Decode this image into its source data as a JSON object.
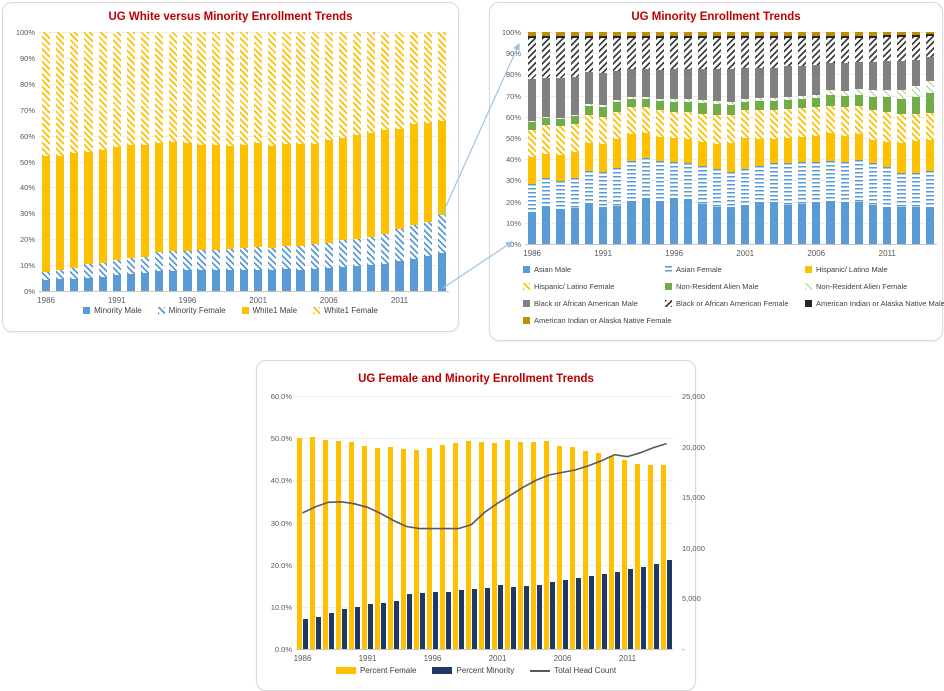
{
  "colors": {
    "title_red": "#C00000",
    "axis_text": "#595959",
    "gridline": "#EDEDED",
    "connector_blue": "#9DC3E6"
  },
  "chart_data": [
    {
      "id": "white_vs_minority",
      "type": "bar",
      "stacked": true,
      "percent_axis": true,
      "title": "UG White versus Minority Enrollment Trends",
      "years": [
        1986,
        1987,
        1988,
        1989,
        1990,
        1991,
        1992,
        1993,
        1994,
        1995,
        1996,
        1997,
        1998,
        1999,
        2000,
        2001,
        2002,
        2003,
        2004,
        2005,
        2006,
        2007,
        2008,
        2009,
        2010,
        2011,
        2012,
        2013,
        2014
      ],
      "x_tick_labels": [
        "1986",
        "1991",
        "1996",
        "2001",
        "2006",
        "2011"
      ],
      "x_tick_indices": [
        0,
        5,
        10,
        15,
        20,
        25
      ],
      "y_ticks": [
        "0%",
        "10%",
        "20%",
        "30%",
        "40%",
        "50%",
        "60%",
        "70%",
        "80%",
        "90%",
        "100%"
      ],
      "series": [
        {
          "name": "Minority Male",
          "color": "#5B9BD5",
          "pattern": "solid",
          "values": [
            4.2,
            4.5,
            4.8,
            5.2,
            5.5,
            6,
            6.5,
            6.8,
            7.6,
            7.6,
            8,
            8.2,
            8.2,
            8.1,
            8.2,
            8.3,
            8.2,
            8.5,
            8.2,
            8.5,
            9,
            9.4,
            9.5,
            10,
            10.6,
            11.6,
            12.2,
            13.5,
            14.6
          ]
        },
        {
          "name": "Minority Female",
          "color": "#5B9BD5",
          "pattern": "diag",
          "values": [
            3.3,
            3.7,
            4.2,
            5.1,
            5.5,
            6,
            6.3,
            6.2,
            7.6,
            7.9,
            7.5,
            7.8,
            7.8,
            8.2,
            8.6,
            8.7,
            8.6,
            8.8,
            9.3,
            9.5,
            9.6,
            10.2,
            10.5,
            11,
            11.6,
            12.2,
            13.4,
            13.3,
            14.8
          ]
        },
        {
          "name": "White1 Male",
          "color": "#FFC000",
          "pattern": "solid",
          "values": [
            44.8,
            44.1,
            44.2,
            43.3,
            43.6,
            43.6,
            43.6,
            43.5,
            41.8,
            41.9,
            41.7,
            40.4,
            40.2,
            39.6,
            39.6,
            40,
            39.2,
            39.3,
            39.3,
            38.9,
            39.9,
            39.3,
            40.1,
            40.2,
            39.8,
            38.9,
            38.7,
            38,
            36.3
          ]
        },
        {
          "name": "White1 Female",
          "color": "#FFC000",
          "pattern": "diag",
          "values": [
            47.7,
            47.7,
            46.8,
            46.4,
            45.4,
            44.4,
            43.6,
            43.5,
            43,
            42.6,
            42.8,
            43.6,
            43.8,
            44.1,
            43.6,
            43,
            44,
            43.4,
            43.2,
            43.1,
            41.5,
            41.1,
            39.9,
            38.8,
            38,
            37.3,
            35.7,
            35.2,
            34.3
          ]
        }
      ]
    },
    {
      "id": "minority_detail",
      "type": "bar",
      "stacked": true,
      "percent_axis": true,
      "title": "UG Minority Enrollment Trends",
      "years": [
        1986,
        1987,
        1988,
        1989,
        1990,
        1991,
        1992,
        1993,
        1994,
        1995,
        1996,
        1997,
        1998,
        1999,
        2000,
        2001,
        2002,
        2003,
        2004,
        2005,
        2006,
        2007,
        2008,
        2009,
        2010,
        2011,
        2012,
        2013,
        2014
      ],
      "x_tick_labels": [
        "1986",
        "1991",
        "1996",
        "2001",
        "2006",
        "2011"
      ],
      "x_tick_indices": [
        0,
        5,
        10,
        15,
        20,
        25
      ],
      "y_ticks": [
        "0%",
        "10%",
        "20%",
        "30%",
        "40%",
        "50%",
        "60%",
        "70%",
        "80%",
        "90%",
        "100%"
      ],
      "series": [
        {
          "name": "Asian Male",
          "color": "#5B9BD5",
          "pattern": "solid",
          "values": [
            15,
            17.5,
            16.5,
            17,
            19,
            17.5,
            18,
            20,
            21,
            20,
            21,
            21,
            19,
            17.5,
            17.5,
            18,
            19.5,
            20,
            18.5,
            19,
            19.5,
            20,
            19.5,
            20,
            18.5,
            17.5,
            17.5,
            17.5,
            17.5
          ]
        },
        {
          "name": "Asian Female",
          "color": "#5B9BD5",
          "pattern": "horiz",
          "values": [
            13.5,
            13.5,
            13,
            14,
            15.5,
            16.5,
            18,
            19,
            19.5,
            19,
            17.5,
            17,
            18,
            18,
            16.5,
            17.5,
            17.5,
            18,
            19.5,
            19.5,
            19,
            19,
            19,
            19.5,
            19.5,
            18.5,
            16,
            16,
            17
          ]
        },
        {
          "name": "Hispanic/ Latino Male",
          "color": "#FFC000",
          "pattern": "solid",
          "values": [
            12.5,
            11.5,
            12.5,
            12.5,
            13,
            13,
            13.5,
            13,
            12,
            11.5,
            11.5,
            11.5,
            11,
            11.5,
            13.5,
            14.5,
            12.5,
            11.5,
            12,
            12,
            12.5,
            13.5,
            12.5,
            12.5,
            11,
            12,
            14,
            15,
            14.5
          ]
        },
        {
          "name": "Hispanic/ Latino Female",
          "color": "#FFC000",
          "pattern": "diag",
          "values": [
            13,
            13.5,
            13.5,
            13,
            13.5,
            13,
            13,
            12.5,
            12,
            12.5,
            12.5,
            13,
            13.5,
            14,
            13.5,
            13,
            13.5,
            13.5,
            13.5,
            13.5,
            13.5,
            12.5,
            13.5,
            13,
            14,
            14,
            13.5,
            13,
            13
          ]
        },
        {
          "name": "Non-Resident Alien Male",
          "color": "#70AD47",
          "pattern": "solid",
          "values": [
            3.5,
            3.5,
            3.5,
            4,
            4,
            4.5,
            4.5,
            4,
            4,
            4.5,
            4.5,
            4.5,
            5,
            5,
            4.5,
            4,
            4.5,
            4.5,
            4.5,
            4.5,
            4.5,
            5.5,
            5.5,
            5.5,
            6.5,
            7,
            7,
            8,
            9
          ]
        },
        {
          "name": "Non-Resident Alien Female",
          "color": "#A9D18E",
          "pattern": "diag-light",
          "values": [
            0.5,
            0.5,
            0.5,
            0.5,
            1,
            1,
            1,
            1,
            1,
            1,
            1.5,
            1.5,
            1.5,
            1.5,
            1.5,
            1.5,
            1.5,
            1.5,
            1.5,
            1.5,
            1.5,
            2,
            2,
            2.5,
            3,
            3.5,
            4.5,
            5,
            6
          ]
        },
        {
          "name": "Black or African American Male",
          "color": "#808080",
          "pattern": "solid",
          "values": [
            20,
            18.5,
            19,
            18,
            15,
            15,
            13.5,
            13,
            13,
            13.5,
            14,
            14,
            14.5,
            15,
            15.5,
            14.5,
            14,
            14,
            14.5,
            14,
            14,
            13,
            13.5,
            13,
            13.5,
            13.5,
            13.5,
            12.5,
            11
          ]
        },
        {
          "name": "Black or African American Female",
          "color": "#404040",
          "pattern": "diag2",
          "values": [
            19,
            18.5,
            18.5,
            18,
            16,
            16.5,
            15.5,
            14.5,
            14.5,
            15,
            14.5,
            14.5,
            14.5,
            14.5,
            14.5,
            14,
            14,
            14,
            13,
            13,
            12.5,
            11.5,
            11.5,
            11,
            11,
            11,
            11,
            10.5,
            10
          ]
        },
        {
          "name": "American Indian or Alaska Native Male",
          "color": "#262626",
          "pattern": "solid",
          "values": [
            1,
            1,
            1,
            1,
            1,
            1,
            1,
            1,
            1,
            1,
            1,
            1,
            1,
            1,
            1,
            1,
            1,
            1,
            1,
            1,
            1,
            1,
            1,
            1,
            1,
            1,
            1,
            1,
            1
          ]
        },
        {
          "name": "American Indian or Alaska Native Female",
          "color": "#BF8F00",
          "pattern": "solid",
          "values": [
            2,
            2,
            2,
            2,
            2,
            2,
            2,
            2,
            2,
            2,
            2,
            2,
            2,
            2,
            2,
            2,
            2,
            2,
            2,
            2,
            2,
            2,
            2,
            2,
            2,
            1.5,
            1.5,
            1.5,
            1
          ]
        }
      ]
    },
    {
      "id": "female_and_minority",
      "type": "combo",
      "title": "UG Female and Minority Enrollment Trends",
      "years": [
        1986,
        1987,
        1988,
        1989,
        1990,
        1991,
        1992,
        1993,
        1994,
        1995,
        1996,
        1997,
        1998,
        1999,
        2000,
        2001,
        2002,
        2003,
        2004,
        2005,
        2006,
        2007,
        2008,
        2009,
        2010,
        2011,
        2012,
        2013,
        2014
      ],
      "x_tick_labels": [
        "1986",
        "1991",
        "1996",
        "2001",
        "2006",
        "2011"
      ],
      "x_tick_indices": [
        0,
        5,
        10,
        15,
        20,
        25
      ],
      "left_axis": {
        "ticks": [
          "0.0%",
          "10.0%",
          "20.0%",
          "30.0%",
          "40.0%",
          "50.0%",
          "60.0%"
        ],
        "max": 60
      },
      "right_axis": {
        "ticks": [
          "-",
          "5,000",
          "10,000",
          "15,000",
          "20,000",
          "25,000"
        ],
        "max": 25000
      },
      "bar_series": [
        {
          "name": "Percent Female",
          "color": "#FFC000",
          "values": [
            50,
            50.2,
            49.5,
            49.4,
            49,
            48.2,
            47.7,
            47.8,
            47.5,
            47.2,
            47.6,
            48.3,
            48.9,
            49.4,
            49.2,
            48.8,
            49.5,
            49.1,
            49.1,
            49.3,
            48.1,
            47.9,
            47,
            46.4,
            45.7,
            44.9,
            43.9,
            43.6,
            43.7
          ]
        },
        {
          "name": "Percent Minority",
          "color": "#1F3864",
          "values": [
            7,
            7.6,
            8.5,
            9.5,
            10,
            10.6,
            11,
            11.5,
            13,
            13.3,
            13.6,
            13.6,
            14,
            14.3,
            14.5,
            15.1,
            14.6,
            15,
            15.2,
            16,
            16.4,
            16.8,
            17.2,
            17.8,
            18.2,
            19,
            19.4,
            20.2,
            21.2
          ]
        }
      ],
      "line_series": {
        "name": "Total Head Count",
        "color": "#595959",
        "values": [
          13450,
          14050,
          14500,
          14550,
          14350,
          14000,
          13400,
          12700,
          12100,
          11900,
          11900,
          11900,
          11900,
          12300,
          13500,
          14400,
          15200,
          16000,
          16700,
          17200,
          17450,
          17700,
          18100,
          18600,
          19200,
          19000,
          19400,
          19900,
          20300
        ]
      }
    }
  ]
}
